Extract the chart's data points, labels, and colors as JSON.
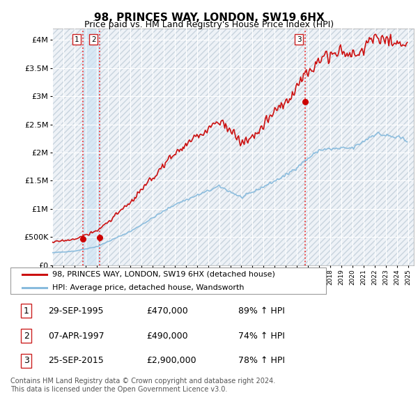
{
  "title": "98, PRINCES WAY, LONDON, SW19 6HX",
  "subtitle": "Price paid vs. HM Land Registry's House Price Index (HPI)",
  "ylabel_ticks": [
    "£0",
    "£500K",
    "£1M",
    "£1.5M",
    "£2M",
    "£2.5M",
    "£3M",
    "£3.5M",
    "£4M"
  ],
  "ytick_values": [
    0,
    500000,
    1000000,
    1500000,
    2000000,
    2500000,
    3000000,
    3500000,
    4000000
  ],
  "ylim": [
    0,
    4200000
  ],
  "xlim_start": 1993.0,
  "xlim_end": 2025.5,
  "transactions": [
    {
      "num": 1,
      "date_x": 1995.75,
      "price": 470000
    },
    {
      "num": 2,
      "date_x": 1997.27,
      "price": 490000
    },
    {
      "num": 3,
      "date_x": 2015.73,
      "price": 2900000
    }
  ],
  "vline_color": "#ee3333",
  "marker_color": "#cc0000",
  "hpi_color": "#88bbdd",
  "price_line_color": "#cc1111",
  "legend_label_price": "98, PRINCES WAY, LONDON, SW19 6HX (detached house)",
  "legend_label_hpi": "HPI: Average price, detached house, Wandsworth",
  "table_rows": [
    {
      "num": "1",
      "date": "29-SEP-1995",
      "price": "£470,000",
      "pct": "89% ↑ HPI"
    },
    {
      "num": "2",
      "date": "07-APR-1997",
      "price": "£490,000",
      "pct": "74% ↑ HPI"
    },
    {
      "num": "3",
      "date": "25-SEP-2015",
      "price": "£2,900,000",
      "pct": "78% ↑ HPI"
    }
  ],
  "footnote": "Contains HM Land Registry data © Crown copyright and database right 2024.\nThis data is licensed under the Open Government Licence v3.0.",
  "background_color": "#ffffff",
  "plot_bg_color": "#eef2f7",
  "grid_color": "#ffffff",
  "shade_between_color": "#d0e4f4"
}
